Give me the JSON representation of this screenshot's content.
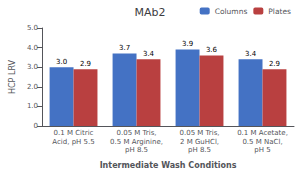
{
  "chart_data": {
    "type": "bar",
    "title": "MAb2",
    "xlabel": "Intermediate Wash Conditions",
    "ylabel": "HCP LRV",
    "categories": [
      "0.1 M Citric\nAcid, pH 5.5",
      "0.05 M Tris,\n0.5 M Arginine,\npH 8.5",
      "0.05 M Tris,\n2 M GuHCl,\npH 8.5",
      "0.1 M Acetate,\n0.5 M NaCl,\npH 5"
    ],
    "series": [
      {
        "name": "Columns",
        "color": "#4472C4",
        "values": [
          3.0,
          3.7,
          3.9,
          3.4
        ],
        "value_labels": [
          "3.0",
          "3.7",
          "3.9",
          "3.4"
        ]
      },
      {
        "name": "Plates",
        "color": "#B94040",
        "values": [
          2.9,
          3.4,
          3.6,
          2.9
        ],
        "value_labels": [
          "2.9",
          "3.4",
          "3.6",
          "2.9"
        ]
      }
    ],
    "ylim": [
      0,
      5.0
    ],
    "yticks": [
      0,
      {
        "value": 1.0,
        "label": "1.0"
      },
      {
        "value": 2.0,
        "label": "2.0"
      },
      {
        "value": 3.0,
        "label": "3.0"
      },
      {
        "value": 4.0,
        "label": "4.0"
      },
      {
        "value": 5.0,
        "label": "5.0"
      }
    ],
    "grid": false,
    "legend": "upper right",
    "data_labels": true
  }
}
